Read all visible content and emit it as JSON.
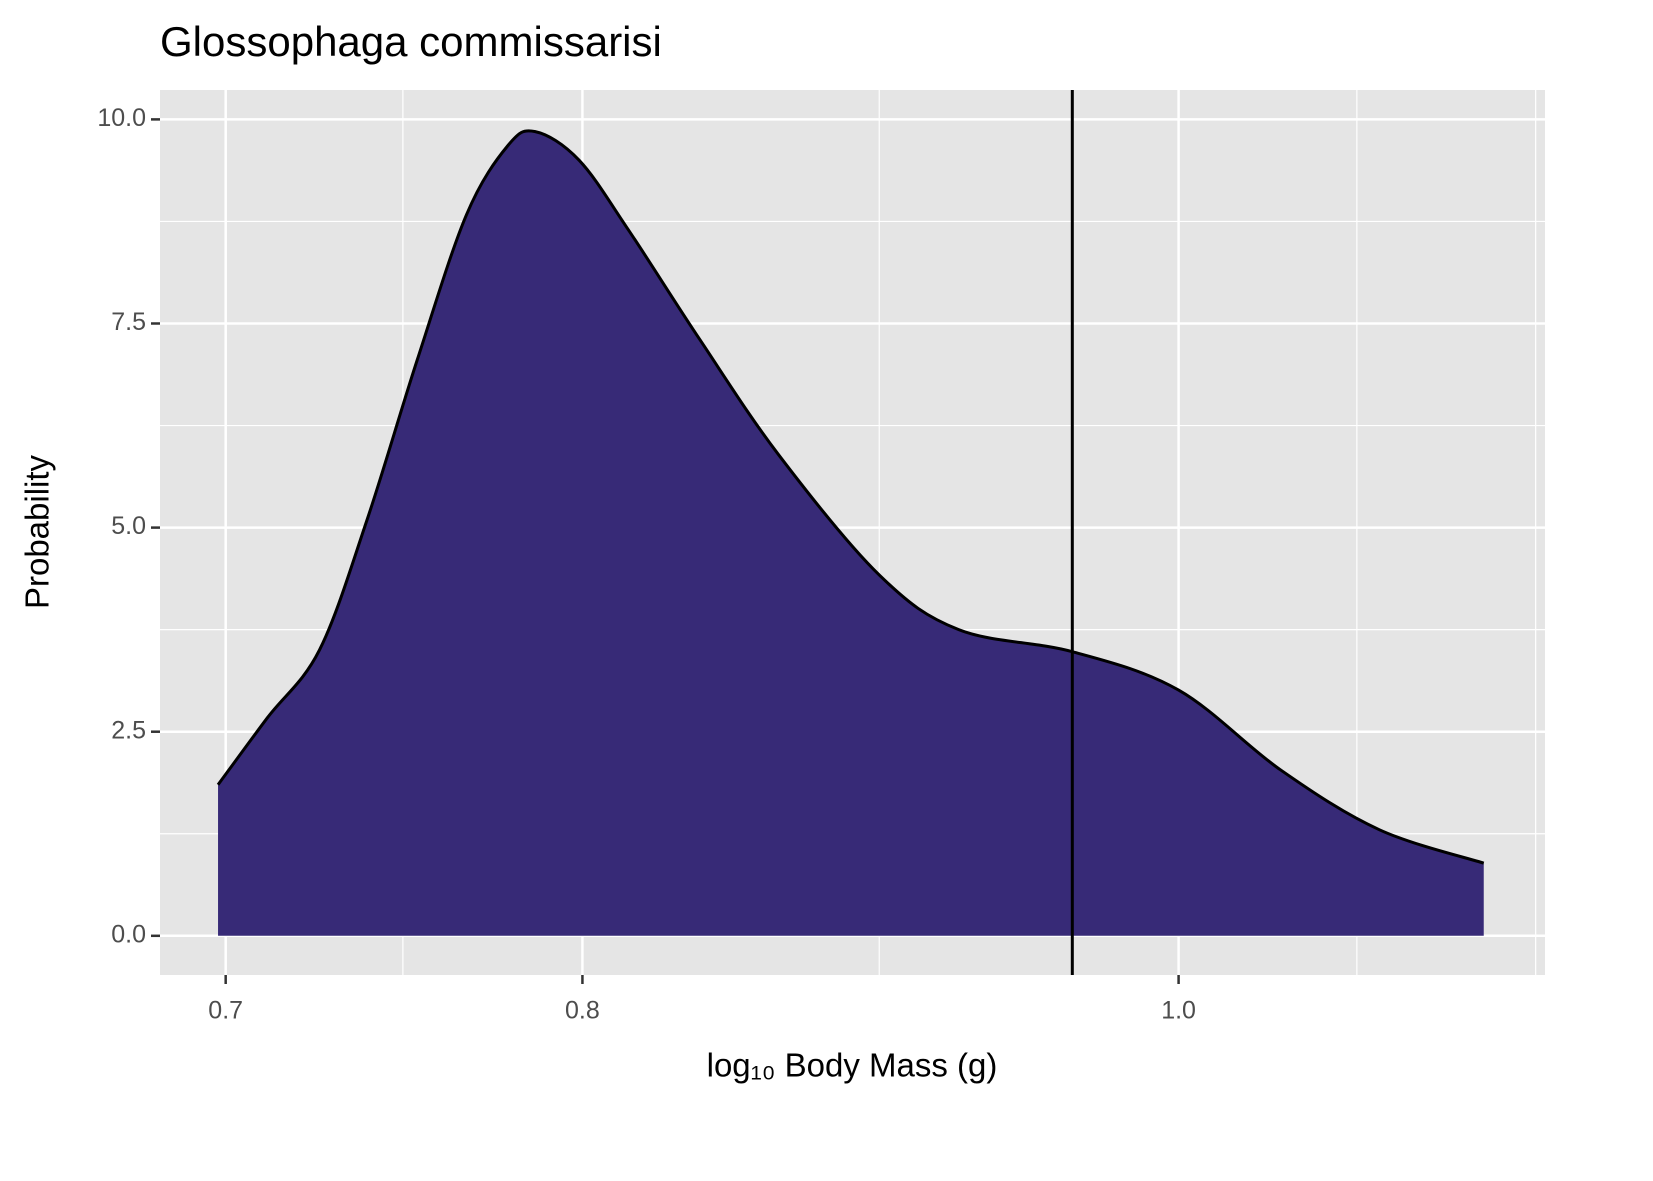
{
  "chart_data": {
    "type": "density",
    "title": "Glossophaga commissarisi",
    "x_label": "log₁₀ Body Mass (g)",
    "y_label": "Probability",
    "x": [
      0.698,
      0.711,
      0.725,
      0.738,
      0.752,
      0.766,
      0.778,
      0.786,
      0.799,
      0.814,
      0.836,
      0.861,
      0.894,
      0.921,
      0.961,
      1.0,
      1.039,
      1.078,
      1.121
    ],
    "values": [
      1.85,
      2.67,
      3.5,
      5.09,
      7.05,
      8.83,
      9.68,
      9.85,
      9.5,
      8.64,
      7.3,
      5.89,
      4.42,
      3.75,
      3.48,
      3.01,
      2.03,
      1.3,
      0.89
    ],
    "color": "#372a77",
    "line_color": "#000000",
    "vline": 0.961,
    "log_x": true,
    "xlim": [
      0.683,
      1.147
    ],
    "ylim": [
      -0.48,
      10.36
    ],
    "xticks": [
      0.7,
      0.8,
      {
        "value": 1,
        "label": "1.0"
      }
    ],
    "xminor": [
      0.748,
      0.894,
      1.069,
      1.143
    ],
    "yticks": [
      {
        "value": 0,
        "label": "0.0"
      },
      2.5,
      {
        "value": 5,
        "label": "5.0"
      },
      7.5,
      {
        "value": 10,
        "label": "10.0"
      }
    ],
    "yminor": [
      1.25,
      3.75,
      6.25,
      8.75
    ],
    "grid": true
  }
}
